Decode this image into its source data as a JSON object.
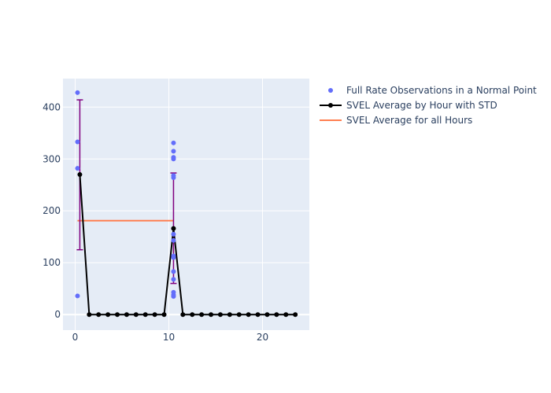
{
  "chart_data": {
    "type": "scatter",
    "xlim": [
      -1.3,
      25
    ],
    "ylim": [
      -30,
      455
    ],
    "x_ticks": [
      0,
      10,
      20
    ],
    "y_ticks": [
      0,
      100,
      200,
      300,
      400
    ],
    "grid": true,
    "legend_position": "top-right",
    "colors": {
      "plot_bg": "#e5ecf6",
      "grid": "#ffffff",
      "scatter": "#636efa",
      "avg_line": "#000000",
      "error_bar": "#800080",
      "all_hours_line": "#ff7f50",
      "text": "#2a3f5f"
    },
    "series": [
      {
        "name": "Full Rate Observations in a Normal Point",
        "type": "scatter",
        "points": [
          [
            0.25,
            428
          ],
          [
            0.25,
            333
          ],
          [
            0.25,
            282
          ],
          [
            0.25,
            36
          ],
          [
            10.5,
            331
          ],
          [
            10.5,
            315
          ],
          [
            10.5,
            303
          ],
          [
            10.5,
            300
          ],
          [
            10.5,
            268
          ],
          [
            10.5,
            264
          ],
          [
            10.5,
            155
          ],
          [
            10.5,
            143
          ],
          [
            10.5,
            113
          ],
          [
            10.5,
            110
          ],
          [
            10.5,
            83
          ],
          [
            10.5,
            68
          ],
          [
            10.5,
            43
          ],
          [
            10.5,
            38
          ],
          [
            10.5,
            35
          ]
        ]
      },
      {
        "name": "SVEL Average by Hour with STD",
        "type": "line",
        "x": [
          0.5,
          1.5,
          2.5,
          3.5,
          4.5,
          5.5,
          6.5,
          7.5,
          8.5,
          9.5,
          10.5,
          11.5,
          12.5,
          13.5,
          14.5,
          15.5,
          16.5,
          17.5,
          18.5,
          19.5,
          20.5,
          21.5,
          22.5,
          23.5
        ],
        "y": [
          270,
          0,
          0,
          0,
          0,
          0,
          0,
          0,
          0,
          0,
          166,
          0,
          0,
          0,
          0,
          0,
          0,
          0,
          0,
          0,
          0,
          0,
          0,
          0
        ],
        "error_bars": [
          {
            "x": 0.5,
            "low": 125,
            "high": 414
          },
          {
            "x": 10.5,
            "low": 60,
            "high": 273
          }
        ]
      },
      {
        "name": "SVEL Average for all Hours",
        "type": "line",
        "x": [
          0.25,
          10.5
        ],
        "y": [
          181,
          181
        ]
      }
    ]
  }
}
